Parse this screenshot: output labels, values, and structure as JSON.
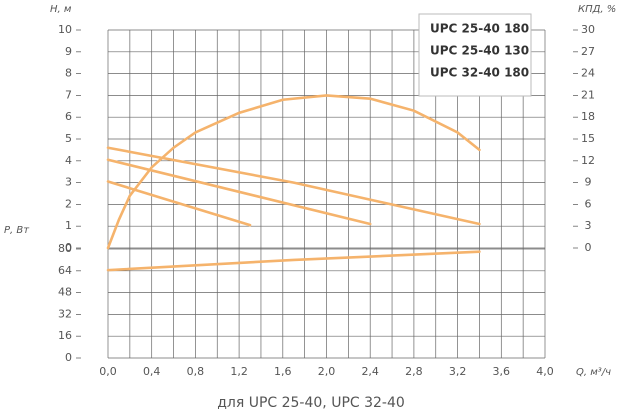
{
  "caption": "для UPC 25-40, UPC 32-40",
  "chart_data": [
    {
      "type": "line",
      "y_label": "Н, м",
      "y2_label": "КПД, %",
      "legend": "upper right",
      "grid": true,
      "xlim": [
        0,
        4
      ],
      "ylim": [
        0,
        10
      ],
      "yticks": [
        0,
        1,
        2,
        3,
        4,
        5,
        6,
        7,
        8,
        9,
        10
      ],
      "y2lim": [
        0,
        30
      ],
      "y2ticks": [
        0,
        3,
        6,
        9,
        12,
        15,
        18,
        21,
        24,
        27,
        30
      ],
      "series": [
        {
          "name": "UPC 25-40 180",
          "color": "#f5b36c",
          "x": [
            0,
            2.4
          ],
          "values": [
            4.05,
            1.1
          ]
        },
        {
          "name": "UPC 25-40 130",
          "color": "#f5b36c",
          "x": [
            0,
            1.3
          ],
          "values": [
            3.05,
            1.05
          ]
        },
        {
          "name": "UPC 32-40 180",
          "color": "#f5b36c",
          "x": [
            0,
            1.7,
            3.4
          ],
          "values": [
            4.6,
            3.0,
            1.1
          ]
        },
        {
          "color": "#f5b36c",
          "axis": "y2",
          "x": [
            0,
            0.1,
            0.2,
            0.4,
            0.6,
            0.8,
            1.2,
            1.6,
            2.0,
            2.4,
            2.8,
            3.2,
            3.4
          ],
          "values": [
            0,
            3.9,
            7.2,
            11.1,
            13.8,
            15.9,
            18.6,
            20.4,
            21,
            20.55,
            18.9,
            15.9,
            13.5
          ]
        }
      ]
    },
    {
      "type": "line",
      "y_label": "Р, Вт",
      "x_label": "Q, м³/ч",
      "grid": true,
      "xlim": [
        0,
        4
      ],
      "xticks": [
        {
          "value": 0,
          "label": "0,0"
        },
        {
          "value": 0.4,
          "label": "0,4"
        },
        {
          "value": 0.8,
          "label": "0,8"
        },
        {
          "value": 1.2,
          "label": "1,2"
        },
        {
          "value": 1.6,
          "label": "1,6"
        },
        {
          "value": 2.0,
          "label": "2,0"
        },
        {
          "value": 2.4,
          "label": "2,4"
        },
        {
          "value": 2.8,
          "label": "2,8"
        },
        {
          "value": 3.2,
          "label": "3,2"
        },
        {
          "value": 3.6,
          "label": "3,6"
        },
        {
          "value": 4.0,
          "label": "4,0"
        }
      ],
      "ylim": [
        0,
        80
      ],
      "yticks": [
        0,
        16,
        32,
        48,
        64,
        80
      ],
      "series": [
        {
          "color": "#f5b36c",
          "x": [
            0,
            1.7,
            3.4
          ],
          "values": [
            64.5,
            72,
            78
          ]
        }
      ]
    }
  ]
}
